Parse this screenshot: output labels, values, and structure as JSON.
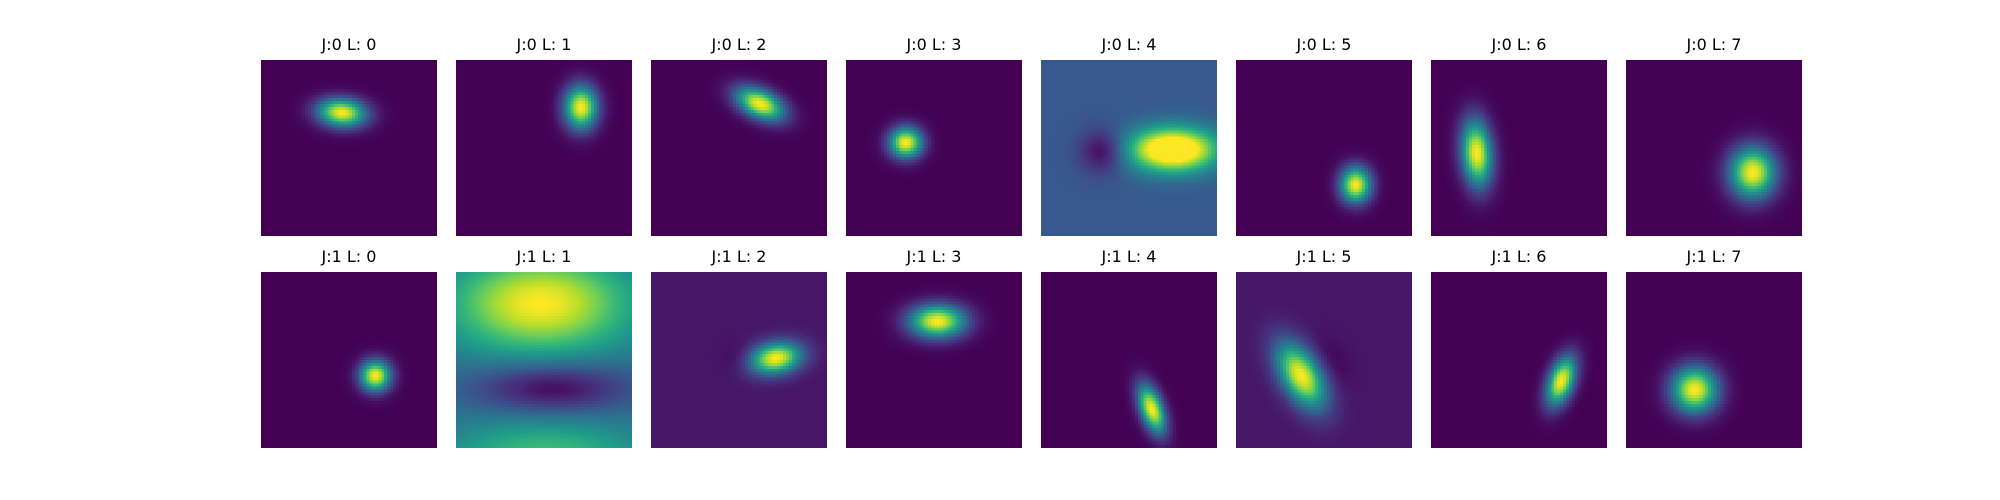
{
  "figure": {
    "background": "#ffffff",
    "colormap": "viridis",
    "colormap_stops": [
      "#440154",
      "#482878",
      "#3e4989",
      "#31688e",
      "#26828e",
      "#1f9e89",
      "#35b779",
      "#6ece58",
      "#b5de2b",
      "#fde725"
    ]
  },
  "chart_data": {
    "type": "heatmap",
    "layout": {
      "rows": 2,
      "cols": 8
    },
    "panels": [
      {
        "title": "J:0 L: 0",
        "bg": 0.0,
        "blobs": [
          {
            "cx": 0.46,
            "cy": 0.3,
            "sx": 0.095,
            "sy": 0.055,
            "rot": 5,
            "amp": 1.0
          }
        ]
      },
      {
        "title": "J:0 L: 1",
        "bg": 0.0,
        "blobs": [
          {
            "cx": 0.71,
            "cy": 0.27,
            "sx": 0.065,
            "sy": 0.085,
            "rot": 0,
            "amp": 1.0
          }
        ]
      },
      {
        "title": "J:0 L: 2",
        "bg": 0.0,
        "blobs": [
          {
            "cx": 0.62,
            "cy": 0.25,
            "sx": 0.1,
            "sy": 0.055,
            "rot": 25,
            "amp": 1.0
          }
        ]
      },
      {
        "title": "J:0 L: 3",
        "bg": 0.0,
        "blobs": [
          {
            "cx": 0.34,
            "cy": 0.47,
            "sx": 0.065,
            "sy": 0.06,
            "rot": 0,
            "amp": 1.0
          }
        ]
      },
      {
        "title": "J:0 L: 4",
        "bg": 0.28,
        "blobs": [
          {
            "cx": 0.75,
            "cy": 0.51,
            "sx": 0.17,
            "sy": 0.085,
            "rot": 0,
            "amp": 1.0
          },
          {
            "cx": 0.35,
            "cy": 0.52,
            "sx": 0.09,
            "sy": 0.085,
            "rot": 0,
            "amp": -0.28
          }
        ]
      },
      {
        "title": "J:0 L: 5",
        "bg": 0.0,
        "blobs": [
          {
            "cx": 0.68,
            "cy": 0.71,
            "sx": 0.06,
            "sy": 0.07,
            "rot": 0,
            "amp": 1.0
          }
        ]
      },
      {
        "title": "J:0 L: 6",
        "bg": 0.0,
        "blobs": [
          {
            "cx": 0.26,
            "cy": 0.53,
            "sx": 0.06,
            "sy": 0.13,
            "rot": -5,
            "amp": 1.0
          }
        ]
      },
      {
        "title": "J:0 L: 7",
        "bg": 0.0,
        "blobs": [
          {
            "cx": 0.72,
            "cy": 0.64,
            "sx": 0.09,
            "sy": 0.1,
            "rot": 0,
            "amp": 1.0
          }
        ]
      },
      {
        "title": "J:1 L: 0",
        "bg": 0.0,
        "blobs": [
          {
            "cx": 0.65,
            "cy": 0.59,
            "sx": 0.06,
            "sy": 0.06,
            "rot": 0,
            "amp": 1.0
          }
        ]
      },
      {
        "title": "J:1 L: 1",
        "bg": 0.35,
        "blobs": [
          {
            "cx": 0.48,
            "cy": 0.18,
            "sx": 0.36,
            "sy": 0.2,
            "rot": 0,
            "amp": 0.65
          },
          {
            "cx": 0.5,
            "cy": 1.05,
            "sx": 0.4,
            "sy": 0.15,
            "rot": 0,
            "amp": 0.35
          },
          {
            "cx": 0.55,
            "cy": 0.66,
            "sx": 0.3,
            "sy": 0.1,
            "rot": 0,
            "amp": -0.35
          }
        ]
      },
      {
        "title": "J:1 L: 2",
        "bg": 0.06,
        "blobs": [
          {
            "cx": 0.71,
            "cy": 0.49,
            "sx": 0.1,
            "sy": 0.06,
            "rot": -10,
            "amp": 0.94
          },
          {
            "cx": 0.49,
            "cy": 0.49,
            "sx": 0.06,
            "sy": 0.06,
            "rot": 0,
            "amp": -0.05
          }
        ]
      },
      {
        "title": "J:1 L: 3",
        "bg": 0.0,
        "blobs": [
          {
            "cx": 0.52,
            "cy": 0.28,
            "sx": 0.11,
            "sy": 0.065,
            "rot": 0,
            "amp": 1.0
          }
        ]
      },
      {
        "title": "J:1 L: 4",
        "bg": 0.0,
        "blobs": [
          {
            "cx": 0.63,
            "cy": 0.78,
            "sx": 0.045,
            "sy": 0.1,
            "rot": -20,
            "amp": 1.0
          }
        ]
      },
      {
        "title": "J:1 L: 5",
        "bg": 0.06,
        "blobs": [
          {
            "cx": 0.37,
            "cy": 0.59,
            "sx": 0.075,
            "sy": 0.14,
            "rot": -30,
            "amp": 0.94
          },
          {
            "cx": 0.55,
            "cy": 0.5,
            "sx": 0.06,
            "sy": 0.1,
            "rot": -30,
            "amp": -0.05
          }
        ]
      },
      {
        "title": "J:1 L: 6",
        "bg": 0.0,
        "blobs": [
          {
            "cx": 0.74,
            "cy": 0.62,
            "sx": 0.05,
            "sy": 0.1,
            "rot": 20,
            "amp": 1.0
          }
        ]
      },
      {
        "title": "J:1 L: 7",
        "bg": 0.0,
        "blobs": [
          {
            "cx": 0.39,
            "cy": 0.67,
            "sx": 0.09,
            "sy": 0.09,
            "rot": 0,
            "amp": 1.0
          }
        ]
      }
    ]
  }
}
